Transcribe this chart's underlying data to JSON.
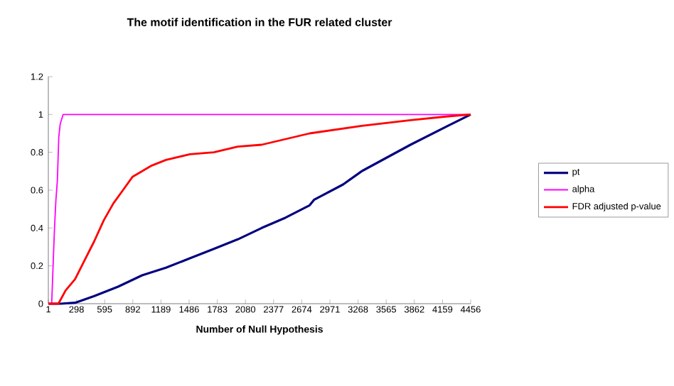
{
  "chart_data": {
    "type": "line",
    "title": "The motif identification in the FUR related cluster",
    "xlabel": "Number of Null Hypothesis",
    "xlim": [
      1,
      4456
    ],
    "xticks": [
      1,
      298,
      595,
      892,
      1189,
      1486,
      1783,
      2080,
      2377,
      2674,
      2971,
      3268,
      3565,
      3862,
      4159,
      4456
    ],
    "ylim": [
      0,
      1.2
    ],
    "yticks": [
      0,
      0.2,
      0.4,
      0.6,
      0.8,
      1,
      1.2
    ],
    "grid": false,
    "legend": "right",
    "marker": "none",
    "line_style": "solid",
    "series": [
      {
        "name": "pt",
        "color": "#000080",
        "x": [
          1,
          131,
          283,
          485,
          737,
          990,
          1242,
          1494,
          1747,
          1999,
          2251,
          2504,
          2757,
          2806,
          3110,
          3306,
          3821,
          4215,
          4456
        ],
        "values": [
          0,
          0,
          0.005,
          0.04,
          0.09,
          0.15,
          0.19,
          0.24,
          0.29,
          0.34,
          0.4,
          0.455,
          0.52,
          0.55,
          0.63,
          0.7,
          0.84,
          0.94,
          1
        ]
      },
      {
        "name": "alpha",
        "color": "#ff00ff",
        "x": [
          1,
          36,
          51,
          66,
          81,
          96,
          111,
          126,
          157,
          4456
        ],
        "values": [
          0,
          0,
          0.2,
          0.4,
          0.55,
          0.65,
          0.88,
          0.95,
          1,
          1
        ]
      },
      {
        "name": "FDR adjusted p-value",
        "color": "#ff0000",
        "x": [
          1,
          107,
          183,
          283,
          384,
          485,
          585,
          687,
          788,
          888,
          990,
          1091,
          1242,
          1494,
          1747,
          1999,
          2251,
          2504,
          2757,
          3306,
          3821,
          4215,
          4456
        ],
        "values": [
          0,
          0,
          0.07,
          0.13,
          0.23,
          0.33,
          0.44,
          0.53,
          0.6,
          0.67,
          0.7,
          0.73,
          0.76,
          0.79,
          0.8,
          0.83,
          0.84,
          0.87,
          0.9,
          0.94,
          0.97,
          0.99,
          1
        ]
      }
    ]
  }
}
